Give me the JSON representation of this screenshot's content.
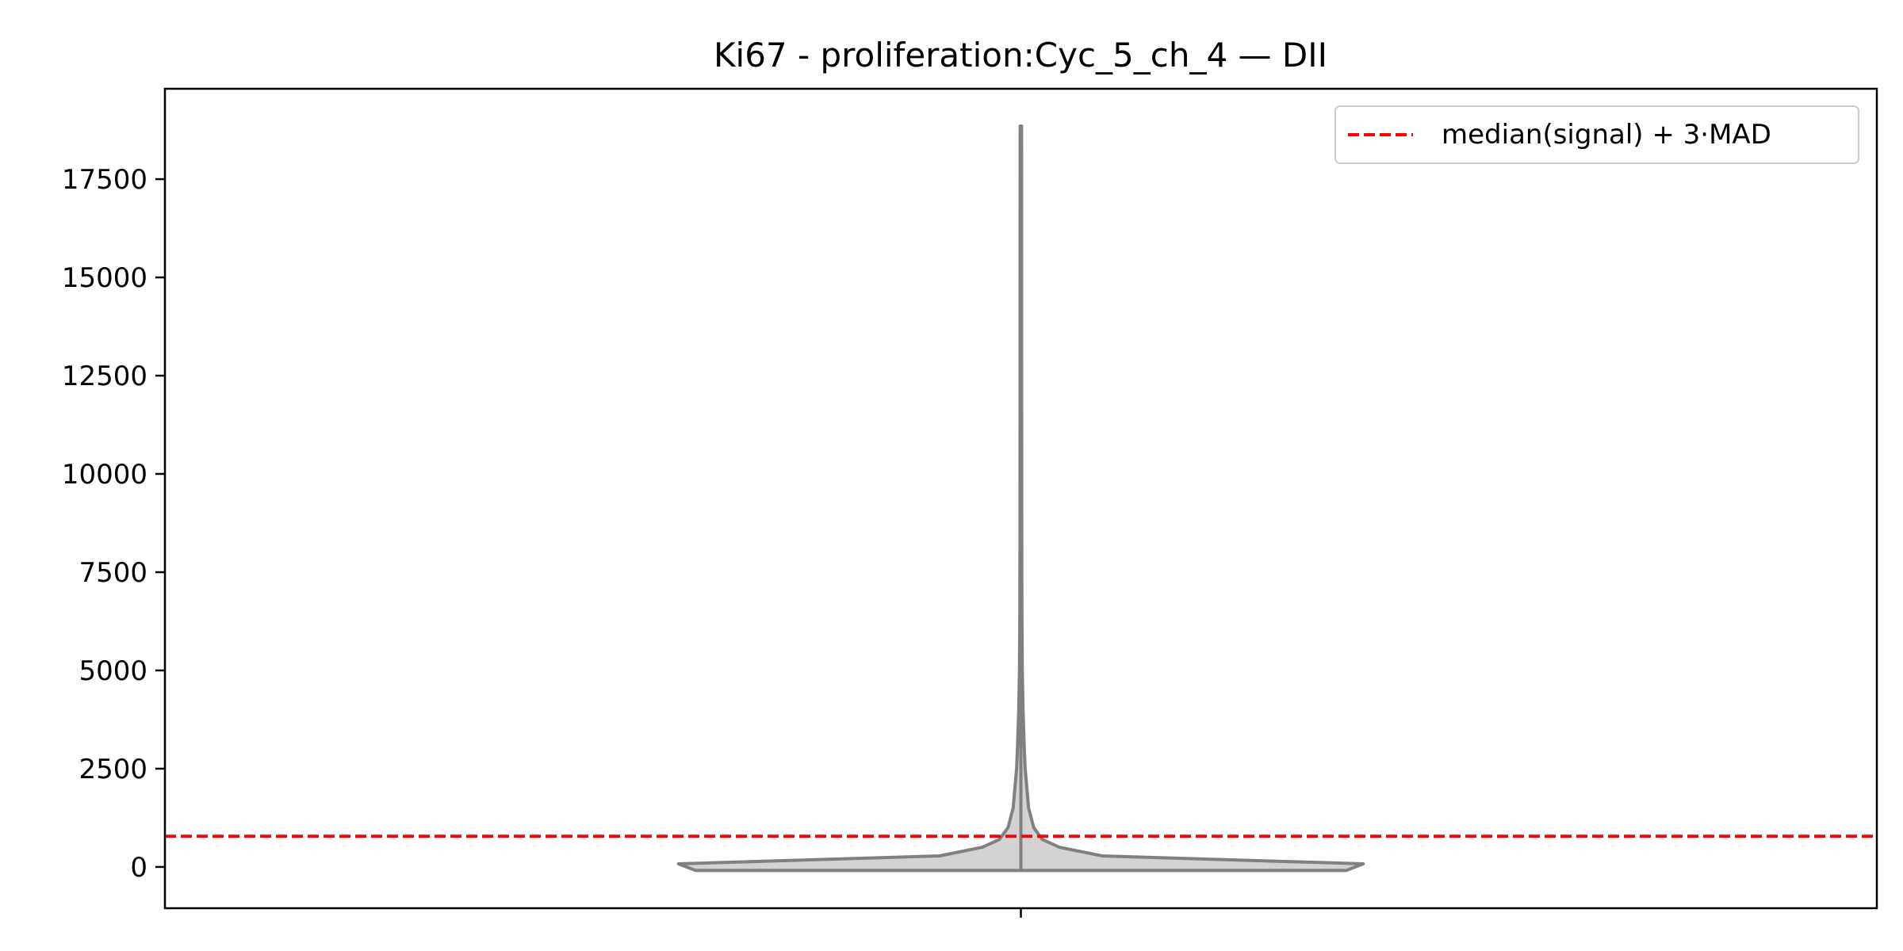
{
  "chart_data": {
    "type": "violin",
    "title": "Ki67 - proliferation:Cyc_5_ch_4 — DII",
    "xlabel": "",
    "ylabel": "",
    "ylim": [
      -1050,
      19800
    ],
    "yticks": [
      0,
      2500,
      5000,
      7500,
      10000,
      12500,
      15000,
      17500
    ],
    "ytick_labels": [
      "0",
      "2500",
      "5000",
      "7500",
      "10000",
      "12500",
      "15000",
      "17500"
    ],
    "grid": false,
    "legend_position": "top-right",
    "violin": {
      "fill_color": "#d3d3d3",
      "edge_color": "#808080",
      "max": 18850,
      "min": -90,
      "profile": [
        {
          "y": -90,
          "half_width": 0.38
        },
        {
          "y": 80,
          "half_width": 0.4
        },
        {
          "y": 280,
          "half_width": 0.095
        },
        {
          "y": 500,
          "half_width": 0.045
        },
        {
          "y": 700,
          "half_width": 0.025
        },
        {
          "y": 1000,
          "half_width": 0.015
        },
        {
          "y": 1500,
          "half_width": 0.009
        },
        {
          "y": 2000,
          "half_width": 0.007
        },
        {
          "y": 2500,
          "half_width": 0.005
        },
        {
          "y": 3000,
          "half_width": 0.004
        },
        {
          "y": 4000,
          "half_width": 0.0025
        },
        {
          "y": 5000,
          "half_width": 0.0017
        },
        {
          "y": 6500,
          "half_width": 0.0012
        },
        {
          "y": 9000,
          "half_width": 0.001
        },
        {
          "y": 13000,
          "half_width": 0.0009
        },
        {
          "y": 18850,
          "half_width": 0.0008
        }
      ]
    },
    "threshold": {
      "label": "median(signal) + 3·MAD",
      "value": 780,
      "color": "#ff0000",
      "style": "dashed"
    }
  }
}
